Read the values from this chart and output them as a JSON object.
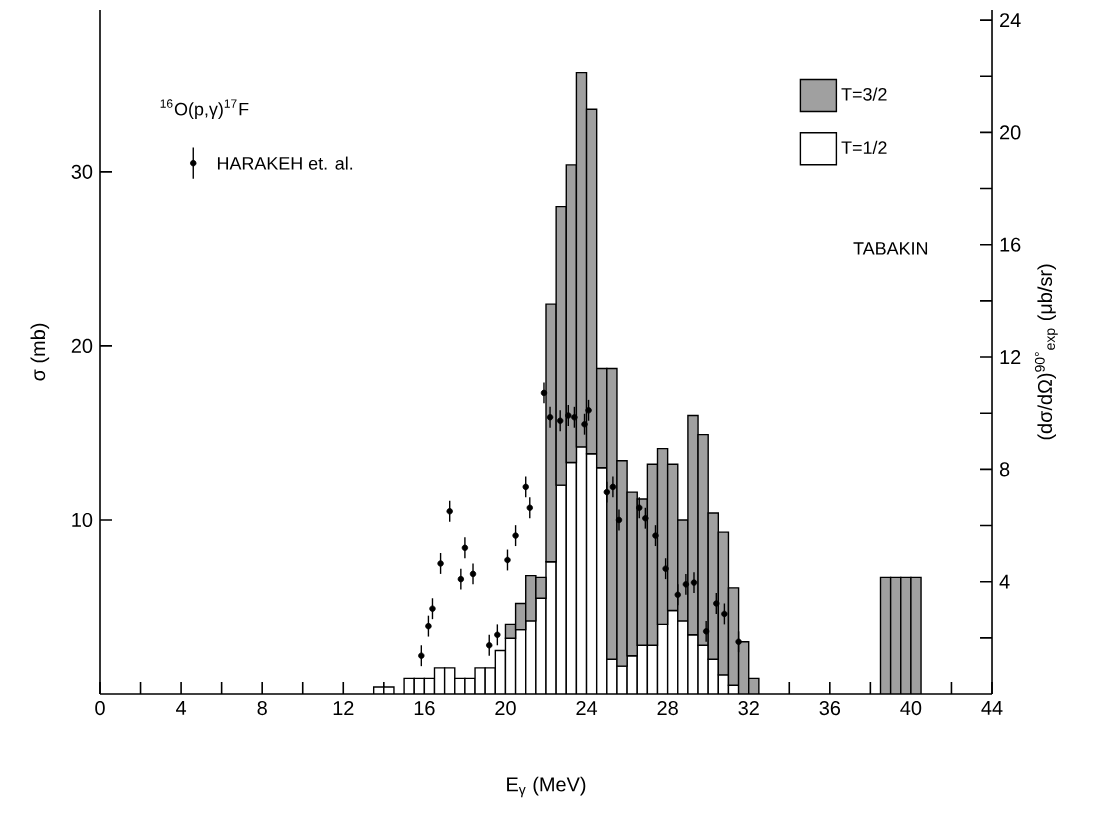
{
  "chart_data": {
    "type": "bar",
    "xlabel": "E$_{γ}$ (MeV)",
    "ylabel": "σ (mb)",
    "y2label": "(dσ/dΩ)$^{90°}$$_{exp}$ (μb/sr)",
    "annotations": [
      "$^{16}$O(p,γ)$^{17}$F",
      "TABAKIN"
    ],
    "stacked": true,
    "legend": "top right",
    "marker": "circle",
    "xlim": [
      0,
      44
    ],
    "ylim": [
      0,
      39.3
    ],
    "y2lim": [
      0,
      24.36
    ],
    "xticks": [
      0,
      {
        "value": 2,
        "label": null
      },
      4,
      {
        "value": 6,
        "label": null
      },
      8,
      {
        "value": 10,
        "label": null
      },
      12,
      {
        "value": 14,
        "label": null
      },
      16,
      {
        "value": 18,
        "label": null
      },
      20,
      {
        "value": 22,
        "label": null
      },
      24,
      {
        "value": 26,
        "label": null
      },
      28,
      {
        "value": 30,
        "label": null
      },
      32,
      {
        "value": 34,
        "label": null
      },
      36,
      {
        "value": 38,
        "label": null
      },
      40,
      {
        "value": 42,
        "label": null
      },
      44
    ],
    "yticks": [
      10,
      20,
      30
    ],
    "y2ticks": [
      {
        "value": 2,
        "label": null
      },
      4,
      {
        "value": 6,
        "label": null
      },
      8,
      {
        "value": 10,
        "label": null
      },
      12,
      {
        "value": 14,
        "label": null
      },
      16,
      {
        "value": 18,
        "label": null
      },
      20,
      {
        "value": 22,
        "label": null
      },
      24
    ],
    "x": [
      13.75,
      14.25,
      14.75,
      15.25,
      15.75,
      16.25,
      16.75,
      17.25,
      17.75,
      18.25,
      18.75,
      19.25,
      19.75,
      20.25,
      20.75,
      21.25,
      21.75,
      22.25,
      22.75,
      23.25,
      23.75,
      24.25,
      24.75,
      25.25,
      25.75,
      26.25,
      26.75,
      27.25,
      27.75,
      28.25,
      28.75,
      29.25,
      29.75,
      30.25,
      30.75,
      31.25,
      31.75,
      32.25,
      38.75,
      39.25,
      39.75,
      40.25
    ],
    "series": [
      {
        "name": "T=1/2",
        "color": "#000000",
        "values": [
          0.4,
          0.4,
          0,
          0.9,
          0.9,
          0.9,
          1.5,
          1.5,
          0.9,
          0.9,
          1.5,
          1.5,
          2.5,
          3.2,
          3.7,
          4.2,
          5.5,
          7.6,
          12.0,
          13.3,
          14.2,
          13.8,
          13.0,
          2.0,
          1.6,
          2.2,
          2.8,
          2.8,
          4.0,
          4.8,
          4.2,
          3.4,
          2.8,
          2.0,
          1.1,
          0.5,
          0,
          0,
          0,
          0,
          0,
          0
        ]
      },
      {
        "name": "T=3/2",
        "color": "#a0a0a0",
        "values": [
          0,
          0,
          0,
          0,
          0,
          0,
          0,
          0,
          0,
          0,
          0,
          0,
          0,
          0.8,
          1.5,
          2.6,
          1.2,
          14.8,
          16.0,
          17.1,
          21.5,
          19.8,
          5.7,
          16.7,
          11.8,
          9.4,
          8.4,
          10.4,
          10.1,
          8.4,
          5.8,
          12.6,
          12.1,
          8.4,
          8.2,
          5.6,
          3.0,
          0.9,
          6.7,
          6.7,
          6.7,
          6.7
        ]
      },
      {
        "name": "HARAKEH et. al.",
        "type": "scatter",
        "color": "#000000",
        "x": [
          15.85,
          16.2,
          16.4,
          16.8,
          17.25,
          17.8,
          18.0,
          18.4,
          19.2,
          19.6,
          20.1,
          20.5,
          21.0,
          21.2,
          21.9,
          22.2,
          22.7,
          23.1,
          23.4,
          23.9,
          24.1,
          25.0,
          25.3,
          25.6,
          26.6,
          26.9,
          27.4,
          27.9,
          28.5,
          28.9,
          29.3,
          29.9,
          30.4,
          30.8,
          31.5
        ],
        "values": [
          2.2,
          3.9,
          4.9,
          7.5,
          10.5,
          6.6,
          8.4,
          6.9,
          2.8,
          3.4,
          7.7,
          9.1,
          11.9,
          10.7,
          17.3,
          15.9,
          15.7,
          16.0,
          15.9,
          15.5,
          16.3,
          11.6,
          11.9,
          10.0,
          10.7,
          10.1,
          9.1,
          7.2,
          5.7,
          6.3,
          6.4,
          3.6,
          5.2,
          4.6,
          3.0
        ],
        "errors": [
          0.6,
          0.6,
          0.6,
          0.6,
          0.6,
          0.6,
          0.6,
          0.6,
          0.6,
          0.6,
          0.6,
          0.6,
          0.6,
          0.6,
          0.6,
          0.6,
          0.6,
          0.6,
          0.6,
          0.6,
          0.6,
          0.6,
          0.6,
          0.6,
          0.6,
          0.6,
          0.6,
          0.6,
          0.6,
          0.6,
          0.6,
          0.6,
          0.6,
          0.6,
          0.6
        ]
      }
    ]
  }
}
